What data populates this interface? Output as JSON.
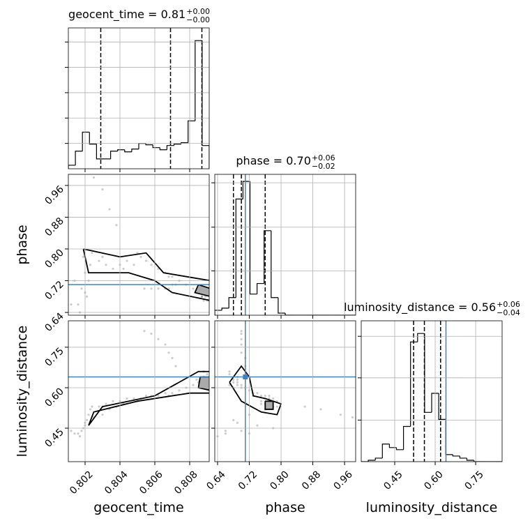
{
  "chart_data": {
    "type": "corner",
    "grid": true,
    "truth_color": "#4682b4",
    "sample_color": "#000000",
    "parameters": [
      {
        "name": "geocent_time",
        "xlim": [
          0.80104,
          0.80912
        ],
        "ticks": [
          0.802,
          0.804,
          0.806,
          0.808
        ],
        "title": {
          "text": "geocent_time = 0.81",
          "upper": "+0.00",
          "lower": "−0.00"
        },
        "quantiles": [
          0.8029,
          0.8069,
          0.8087
        ],
        "hist": {
          "bins": [
            0.80104,
            0.801444,
            0.801848,
            0.802252,
            0.802656,
            0.80306,
            0.803464,
            0.803868,
            0.804272,
            0.804676,
            0.80508,
            0.805484,
            0.805888,
            0.806292,
            0.806696,
            0.8071,
            0.807504,
            0.807908,
            0.808312,
            0.808716,
            0.80912
          ],
          "counts": [
            5,
            25,
            52,
            35,
            14,
            14,
            25,
            27,
            24,
            28,
            36,
            34,
            30,
            27,
            33,
            35,
            37,
            68,
            182,
            33
          ],
          "ylim": [
            0,
            200
          ],
          "yticks": [
            36,
            72,
            108,
            144,
            180
          ]
        }
      },
      {
        "name": "phase",
        "xlim": [
          0.633,
          0.988
        ],
        "ticks": [
          0.64,
          0.72,
          {
            "value": 0.8,
            "label": "0.80"
          },
          0.88,
          0.96
        ],
        "title": {
          "text": "phase = 0.70",
          "upper": "+0.06",
          "lower": "−0.02"
        },
        "quantiles": [
          0.68,
          0.7,
          0.76
        ],
        "truth": 0.71,
        "hist": {
          "bins": [
            0.633,
            0.65075,
            0.6685,
            0.68625,
            0.704,
            0.72175,
            0.7395,
            0.75725,
            0.775,
            0.79275,
            0.8105,
            0.82825,
            0.846,
            0.86375,
            0.8815,
            0.89925,
            0.917,
            0.93475,
            0.9525,
            0.97025,
            0.988
          ],
          "counts": [
            7,
            10,
            25,
            165,
            190,
            30,
            45,
            120,
            25,
            3,
            0,
            0,
            0,
            0,
            0,
            0,
            0,
            0,
            0,
            0
          ],
          "ylim": [
            0,
            200
          ],
          "yticks": [
            63,
            125,
            188
          ]
        }
      },
      {
        "name": "luminosity_distance",
        "xlim": [
          0.326,
          0.848
        ],
        "ticks": [
          0.45,
          {
            "value": 0.6,
            "label": "0.60"
          },
          0.75
        ],
        "title": {
          "text": "luminosity_distance = 0.56",
          "upper": "+0.06",
          "lower": "−0.04"
        },
        "quantiles": [
          0.52,
          0.56,
          0.62
        ],
        "truth": 0.64,
        "hist": {
          "bins": [
            0.326,
            0.3521,
            0.3782,
            0.4043,
            0.4304,
            0.4565,
            0.4826,
            0.5087,
            0.5348,
            0.5609,
            0.587,
            0.6131,
            0.6392,
            0.6653,
            0.6914,
            0.7175,
            0.7436,
            0.7697,
            0.7958,
            0.8219,
            0.848
          ],
          "counts": [
            0,
            2,
            5,
            25,
            20,
            17,
            50,
            170,
            182,
            70,
            97,
            60,
            10,
            8,
            5,
            2,
            0,
            0,
            0,
            0
          ],
          "ylim": [
            0,
            200
          ],
          "yticks": [
            59,
            119,
            178
          ]
        }
      }
    ],
    "samples": [
      [
        0.8016,
        0.66,
        0.43
      ],
      [
        0.8018,
        0.7,
        0.44
      ],
      [
        0.802,
        0.74,
        0.46
      ],
      [
        0.8021,
        0.68,
        0.48
      ],
      [
        0.8022,
        0.72,
        0.5
      ],
      [
        0.8019,
        0.78,
        0.45
      ],
      [
        0.8023,
        0.76,
        0.52
      ],
      [
        0.8017,
        0.64,
        0.42
      ],
      [
        0.8024,
        0.79,
        0.53
      ],
      [
        0.802,
        0.69,
        0.47
      ],
      [
        0.8012,
        0.66,
        0.44
      ],
      [
        0.8014,
        0.72,
        0.43
      ],
      [
        0.8028,
        0.77,
        0.53
      ],
      [
        0.8032,
        0.76,
        0.54
      ],
      [
        0.8036,
        0.75,
        0.55
      ],
      [
        0.804,
        0.76,
        0.55
      ],
      [
        0.8044,
        0.77,
        0.56
      ],
      [
        0.8048,
        0.76,
        0.56
      ],
      [
        0.8052,
        0.78,
        0.56
      ],
      [
        0.8055,
        0.77,
        0.57
      ],
      [
        0.8058,
        0.76,
        0.57
      ],
      [
        0.803,
        0.78,
        0.53
      ],
      [
        0.8042,
        0.75,
        0.54
      ],
      [
        0.805,
        0.79,
        0.55
      ],
      [
        0.8062,
        0.75,
        0.57
      ],
      [
        0.8066,
        0.74,
        0.58
      ],
      [
        0.807,
        0.73,
        0.58
      ],
      [
        0.8074,
        0.72,
        0.59
      ],
      [
        0.8078,
        0.71,
        0.6
      ],
      [
        0.8068,
        0.73,
        0.57
      ],
      [
        0.8082,
        0.7,
        0.61
      ],
      [
        0.8085,
        0.69,
        0.62
      ],
      [
        0.8087,
        0.68,
        0.63
      ],
      [
        0.8088,
        0.69,
        0.64
      ],
      [
        0.8089,
        0.68,
        0.62
      ],
      [
        0.809,
        0.67,
        0.65
      ],
      [
        0.8086,
        0.7,
        0.6
      ],
      [
        0.8091,
        0.67,
        0.61
      ],
      [
        0.8084,
        0.69,
        0.63
      ],
      [
        0.8088,
        0.67,
        0.66
      ],
      [
        0.8089,
        0.69,
        0.61
      ],
      [
        0.8087,
        0.68,
        0.6
      ],
      [
        0.8072,
        0.71,
        0.68
      ],
      [
        0.807,
        0.71,
        0.71
      ],
      [
        0.8068,
        0.7,
        0.73
      ],
      [
        0.8066,
        0.7,
        0.76
      ],
      [
        0.8062,
        0.7,
        0.78
      ],
      [
        0.8058,
        0.7,
        0.8
      ],
      [
        0.8054,
        0.7,
        0.81
      ],
      [
        0.803,
        0.95,
        0.5
      ],
      [
        0.8034,
        0.9,
        0.52
      ],
      [
        0.8038,
        0.86,
        0.53
      ],
      [
        0.8025,
        0.98,
        0.49
      ]
    ],
    "panels": [
      {
        "row": 1,
        "col": 0,
        "contours": [
          {
            "x": [
              0.8019,
              0.804,
              0.8055,
              0.8065,
              0.8092,
              0.8092,
              0.807,
              0.806,
              0.8045,
              0.8022,
              0.8019
            ],
            "y": [
              0.8,
              0.78,
              0.79,
              0.74,
              0.72,
              0.67,
              0.69,
              0.72,
              0.74,
              0.74,
              0.8
            ]
          },
          {
            "x": [
              0.8085,
              0.8092,
              0.8092,
              0.8083,
              0.8085
            ],
            "y": [
              0.71,
              0.7,
              0.68,
              0.69,
              0.71
            ]
          }
        ]
      },
      {
        "row": 2,
        "col": 0,
        "contours": [
          {
            "x": [
              0.8022,
              0.803,
              0.806,
              0.8085,
              0.8092,
              0.8092,
              0.808,
              0.805,
              0.8025,
              0.8022
            ],
            "y": [
              0.46,
              0.53,
              0.57,
              0.66,
              0.66,
              0.58,
              0.58,
              0.55,
              0.51,
              0.46
            ]
          },
          {
            "x": [
              0.8086,
              0.8092,
              0.8092,
              0.8085,
              0.8086
            ],
            "y": [
              0.64,
              0.64,
              0.59,
              0.6,
              0.64
            ]
          }
        ]
      },
      {
        "row": 2,
        "col": 1,
        "contours": [
          {
            "x": [
              0.67,
              0.7,
              0.72,
              0.73,
              0.76,
              0.8,
              0.79,
              0.75,
              0.7,
              0.67
            ],
            "y": [
              0.62,
              0.68,
              0.64,
              0.57,
              0.56,
              0.54,
              0.5,
              0.51,
              0.55,
              0.62
            ]
          },
          {
            "x": [
              0.76,
              0.78,
              0.78,
              0.76,
              0.76
            ],
            "y": [
              0.55,
              0.55,
              0.52,
              0.52,
              0.55
            ]
          }
        ]
      }
    ]
  }
}
